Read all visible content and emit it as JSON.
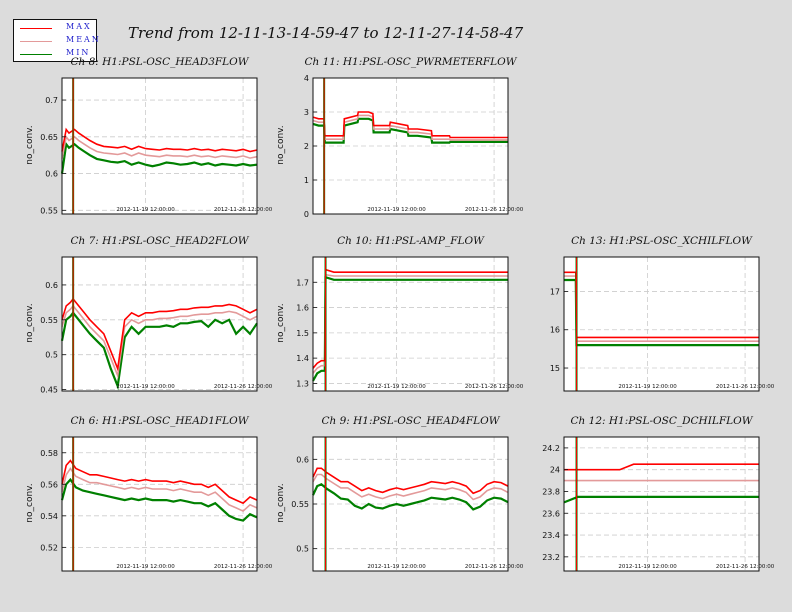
{
  "title": "Trend from 12-11-13-14-59-47 to 12-11-27-14-58-47",
  "legend": [
    {
      "label": "MAX",
      "color": "#ff0000"
    },
    {
      "label": "MEAN",
      "color": "#e39a9a"
    },
    {
      "label": "MIN",
      "color": "#008000"
    }
  ],
  "colors": {
    "max": "#ff0000",
    "mean": "#e39a9a",
    "min": "#008000",
    "grid": "#cccccc"
  },
  "chart_data": [
    {
      "id": "ch8",
      "type": "line",
      "title": "Ch 8: H1:PSL-OSC_HEAD3FLOW",
      "ylabel": "no_conv.",
      "ylim": [
        0.545,
        0.73
      ],
      "yticks": [
        "0.55",
        "0.6",
        "0.65",
        "0.7"
      ],
      "ytick_values": [
        0.55,
        0.6,
        0.65,
        0.7
      ],
      "xticks": [
        "2012-11-19 12:00:00",
        "2012-11-26 12:00:00"
      ],
      "xtick_days": [
        6.0,
        13.0
      ],
      "spike_day": 0.8,
      "series": {
        "x": [
          0,
          0.3,
          0.5,
          0.9,
          1.2,
          1.6,
          2,
          2.5,
          3,
          3.5,
          4,
          4.5,
          5,
          5.5,
          6,
          6.5,
          7,
          7.5,
          8,
          8.5,
          9,
          9.5,
          10,
          10.5,
          11,
          11.5,
          12,
          12.5,
          13,
          13.5,
          14
        ],
        "max": [
          0.63,
          0.66,
          0.655,
          0.66,
          0.655,
          0.65,
          0.645,
          0.64,
          0.637,
          0.636,
          0.635,
          0.637,
          0.633,
          0.637,
          0.634,
          0.633,
          0.632,
          0.634,
          0.633,
          0.633,
          0.632,
          0.634,
          0.632,
          0.633,
          0.631,
          0.633,
          0.632,
          0.631,
          0.633,
          0.63,
          0.632
        ],
        "mean": [
          0.62,
          0.65,
          0.645,
          0.65,
          0.645,
          0.64,
          0.635,
          0.63,
          0.628,
          0.627,
          0.626,
          0.628,
          0.624,
          0.628,
          0.625,
          0.624,
          0.623,
          0.625,
          0.624,
          0.624,
          0.623,
          0.625,
          0.623,
          0.624,
          0.622,
          0.624,
          0.623,
          0.622,
          0.624,
          0.621,
          0.623
        ],
        "min": [
          0.6,
          0.64,
          0.635,
          0.64,
          0.635,
          0.63,
          0.625,
          0.62,
          0.618,
          0.616,
          0.615,
          0.617,
          0.612,
          0.615,
          0.612,
          0.61,
          0.612,
          0.615,
          0.614,
          0.612,
          0.613,
          0.615,
          0.612,
          0.614,
          0.611,
          0.613,
          0.612,
          0.611,
          0.613,
          0.611,
          0.612
        ]
      }
    },
    {
      "id": "ch11",
      "type": "line",
      "title": "Ch 11: H1:PSL-OSC_PWRMETERFLOW",
      "ylabel": "no_conv.",
      "ylim": [
        0,
        4
      ],
      "yticks": [
        "0",
        "1",
        "2",
        "3",
        "4"
      ],
      "ytick_values": [
        0,
        1,
        2,
        3,
        4
      ],
      "xticks": [
        "2012-11-19 12:00:00",
        "2012-11-26 12:00:00"
      ],
      "xtick_days": [
        6.0,
        13.0
      ],
      "spike_day": 0.8,
      "series": {
        "x": [
          0,
          0.4,
          0.8,
          0.85,
          2.2,
          2.25,
          3.2,
          3.25,
          4.0,
          4.3,
          4.35,
          5.5,
          5.55,
          6.8,
          6.85,
          7.5,
          8.5,
          8.55,
          9.8,
          9.85,
          11.0,
          11.05,
          14
        ],
        "max": [
          2.85,
          2.8,
          2.8,
          2.3,
          2.3,
          2.8,
          2.9,
          3.0,
          3.0,
          2.95,
          2.6,
          2.6,
          2.7,
          2.6,
          2.5,
          2.5,
          2.45,
          2.3,
          2.3,
          2.25,
          2.25,
          2.25,
          2.25
        ],
        "mean": [
          2.75,
          2.7,
          2.7,
          2.2,
          2.2,
          2.7,
          2.8,
          2.9,
          2.9,
          2.85,
          2.5,
          2.5,
          2.6,
          2.5,
          2.4,
          2.4,
          2.35,
          2.2,
          2.2,
          2.18,
          2.18,
          2.18,
          2.18
        ],
        "min": [
          2.65,
          2.6,
          2.6,
          2.1,
          2.1,
          2.6,
          2.7,
          2.8,
          2.8,
          2.75,
          2.4,
          2.4,
          2.5,
          2.4,
          2.3,
          2.3,
          2.25,
          2.1,
          2.1,
          2.12,
          2.12,
          2.12,
          2.12
        ]
      }
    },
    {
      "id": "ch7",
      "type": "line",
      "title": "Ch 7: H1:PSL-OSC_HEAD2FLOW",
      "ylabel": "no_conv.",
      "ylim": [
        0.448,
        0.64
      ],
      "yticks": [
        "0.45",
        "0.5",
        "0.55",
        "0.6"
      ],
      "ytick_values": [
        0.45,
        0.5,
        0.55,
        0.6
      ],
      "xticks": [
        "2012-11-19 12:00:00",
        "2012-11-26 12:00:00"
      ],
      "xtick_days": [
        6.0,
        13.0
      ],
      "spike_day": 0.8,
      "series": {
        "x": [
          0,
          0.3,
          0.6,
          0.8,
          1.2,
          1.6,
          2,
          2.5,
          3,
          3.5,
          4,
          4.5,
          5,
          5.5,
          6,
          6.5,
          7,
          7.5,
          8,
          8.5,
          9,
          9.5,
          10,
          10.5,
          11,
          11.5,
          12,
          12.5,
          13,
          13.5,
          14
        ],
        "max": [
          0.55,
          0.57,
          0.575,
          0.58,
          0.57,
          0.56,
          0.55,
          0.54,
          0.53,
          0.505,
          0.48,
          0.55,
          0.56,
          0.555,
          0.56,
          0.56,
          0.562,
          0.562,
          0.563,
          0.565,
          0.565,
          0.567,
          0.568,
          0.568,
          0.57,
          0.57,
          0.572,
          0.57,
          0.565,
          0.56,
          0.565
        ],
        "mean": [
          0.54,
          0.56,
          0.565,
          0.57,
          0.56,
          0.55,
          0.54,
          0.53,
          0.52,
          0.495,
          0.47,
          0.54,
          0.55,
          0.545,
          0.55,
          0.55,
          0.552,
          0.552,
          0.553,
          0.555,
          0.555,
          0.557,
          0.558,
          0.558,
          0.56,
          0.56,
          0.562,
          0.56,
          0.555,
          0.55,
          0.555
        ],
        "min": [
          0.52,
          0.55,
          0.555,
          0.56,
          0.55,
          0.54,
          0.53,
          0.52,
          0.51,
          0.48,
          0.455,
          0.525,
          0.54,
          0.53,
          0.54,
          0.54,
          0.54,
          0.542,
          0.54,
          0.545,
          0.545,
          0.547,
          0.548,
          0.54,
          0.55,
          0.545,
          0.55,
          0.53,
          0.54,
          0.53,
          0.545
        ]
      }
    },
    {
      "id": "ch10",
      "type": "line",
      "title": "Ch 10: H1:PSL-AMP_FLOW",
      "ylabel": "no_conv.",
      "ylim": [
        1.27,
        1.8
      ],
      "yticks": [
        "1.3",
        "1.4",
        "1.5",
        "1.6",
        "1.7"
      ],
      "ytick_values": [
        1.3,
        1.4,
        1.5,
        1.6,
        1.7
      ],
      "xticks": [
        "2012-11-19 12:00:00",
        "2012-11-26 12:00:00"
      ],
      "xtick_days": [
        6.0,
        13.0
      ],
      "spike_day": 0.9,
      "series": {
        "x": [
          0,
          0.3,
          0.6,
          0.85,
          0.9,
          1.5,
          3,
          5,
          7,
          9,
          11,
          13,
          14
        ],
        "max": [
          1.36,
          1.38,
          1.39,
          1.39,
          1.75,
          1.74,
          1.74,
          1.74,
          1.74,
          1.74,
          1.74,
          1.74,
          1.74
        ],
        "mean": [
          1.34,
          1.36,
          1.37,
          1.37,
          1.73,
          1.725,
          1.725,
          1.725,
          1.725,
          1.725,
          1.725,
          1.725,
          1.725
        ],
        "min": [
          1.31,
          1.34,
          1.35,
          1.35,
          1.72,
          1.71,
          1.71,
          1.71,
          1.71,
          1.71,
          1.71,
          1.71,
          1.71
        ]
      }
    },
    {
      "id": "ch13",
      "type": "line",
      "title": "Ch 13: H1:PSL-OSC_XCHILFLOW",
      "ylabel": "",
      "ylim": [
        14.4,
        17.9
      ],
      "yticks": [
        "15",
        "16",
        "17"
      ],
      "ytick_values": [
        15,
        16,
        17
      ],
      "xticks": [
        "2012-11-19 12:00:00",
        "2012-11-26 12:00:00"
      ],
      "xtick_days": [
        6.0,
        13.0
      ],
      "spike_day": 0.9,
      "series": {
        "x": [
          0,
          0.85,
          0.9,
          2,
          4,
          6,
          8,
          10,
          12,
          14
        ],
        "max": [
          17.5,
          17.5,
          15.8,
          15.8,
          15.8,
          15.8,
          15.8,
          15.8,
          15.8,
          15.8
        ],
        "mean": [
          17.4,
          17.4,
          15.7,
          15.7,
          15.7,
          15.7,
          15.7,
          15.7,
          15.7,
          15.7
        ],
        "min": [
          17.3,
          17.3,
          15.6,
          15.6,
          15.6,
          15.6,
          15.6,
          15.6,
          15.6,
          15.6
        ]
      }
    },
    {
      "id": "ch6",
      "type": "line",
      "title": "Ch 6: H1:PSL-OSC_HEAD1FLOW",
      "ylabel": "no_conv.",
      "ylim": [
        0.505,
        0.59
      ],
      "yticks": [
        "0.52",
        "0.54",
        "0.56",
        "0.58"
      ],
      "ytick_values": [
        0.52,
        0.54,
        0.56,
        0.58
      ],
      "xticks": [
        "2012-11-19 12:00:00",
        "2012-11-26 12:00:00"
      ],
      "xtick_days": [
        6.0,
        13.0
      ],
      "spike_day": 0.8,
      "series": {
        "x": [
          0,
          0.3,
          0.6,
          1,
          1.5,
          2,
          2.5,
          3,
          3.5,
          4,
          4.5,
          5,
          5.5,
          6,
          6.5,
          7,
          7.5,
          8,
          8.5,
          9,
          9.5,
          10,
          10.5,
          11,
          11.5,
          12,
          12.5,
          13,
          13.5,
          14
        ],
        "max": [
          0.56,
          0.572,
          0.575,
          0.57,
          0.568,
          0.566,
          0.566,
          0.565,
          0.564,
          0.563,
          0.562,
          0.563,
          0.562,
          0.563,
          0.562,
          0.562,
          0.562,
          0.561,
          0.562,
          0.561,
          0.56,
          0.56,
          0.558,
          0.56,
          0.556,
          0.552,
          0.55,
          0.548,
          0.552,
          0.55
        ],
        "mean": [
          0.555,
          0.566,
          0.57,
          0.565,
          0.563,
          0.561,
          0.561,
          0.56,
          0.559,
          0.558,
          0.557,
          0.558,
          0.557,
          0.558,
          0.557,
          0.557,
          0.557,
          0.556,
          0.557,
          0.556,
          0.555,
          0.555,
          0.553,
          0.555,
          0.551,
          0.547,
          0.545,
          0.543,
          0.547,
          0.545
        ],
        "min": [
          0.55,
          0.56,
          0.563,
          0.558,
          0.556,
          0.555,
          0.554,
          0.553,
          0.552,
          0.551,
          0.55,
          0.551,
          0.55,
          0.551,
          0.55,
          0.55,
          0.55,
          0.549,
          0.55,
          0.549,
          0.548,
          0.548,
          0.546,
          0.548,
          0.544,
          0.54,
          0.538,
          0.537,
          0.541,
          0.539
        ]
      }
    },
    {
      "id": "ch9",
      "type": "line",
      "title": "Ch 9: H1:PSL-OSC_HEAD4FLOW",
      "ylabel": "no_conv.",
      "ylim": [
        0.475,
        0.625
      ],
      "yticks": [
        "0.5",
        "0.55",
        "0.6"
      ],
      "ytick_values": [
        0.5,
        0.55,
        0.6
      ],
      "xticks": [
        "2012-11-19 12:00:00",
        "2012-11-26 12:00:00"
      ],
      "xtick_days": [
        6.0,
        13.0
      ],
      "spike_day": 0.9,
      "series": {
        "x": [
          0,
          0.3,
          0.6,
          1,
          1.5,
          2,
          2.5,
          3,
          3.5,
          4,
          4.5,
          5,
          5.5,
          6,
          6.5,
          7,
          7.5,
          8,
          8.5,
          9,
          9.5,
          10,
          10.5,
          11,
          11.5,
          12,
          12.5,
          13,
          13.5,
          14
        ],
        "max": [
          0.58,
          0.59,
          0.59,
          0.585,
          0.58,
          0.575,
          0.575,
          0.57,
          0.565,
          0.568,
          0.565,
          0.563,
          0.566,
          0.568,
          0.566,
          0.568,
          0.57,
          0.572,
          0.575,
          0.574,
          0.573,
          0.575,
          0.573,
          0.57,
          0.562,
          0.565,
          0.572,
          0.575,
          0.574,
          0.57
        ],
        "mean": [
          0.575,
          0.583,
          0.583,
          0.578,
          0.573,
          0.568,
          0.568,
          0.563,
          0.558,
          0.561,
          0.558,
          0.556,
          0.559,
          0.561,
          0.559,
          0.561,
          0.563,
          0.565,
          0.568,
          0.567,
          0.566,
          0.568,
          0.566,
          0.563,
          0.555,
          0.558,
          0.565,
          0.568,
          0.567,
          0.563
        ],
        "min": [
          0.56,
          0.57,
          0.572,
          0.567,
          0.562,
          0.556,
          0.555,
          0.548,
          0.545,
          0.55,
          0.546,
          0.545,
          0.548,
          0.55,
          0.548,
          0.55,
          0.552,
          0.554,
          0.557,
          0.556,
          0.555,
          0.557,
          0.555,
          0.552,
          0.544,
          0.547,
          0.554,
          0.557,
          0.556,
          0.552
        ]
      }
    },
    {
      "id": "ch12",
      "type": "line",
      "title": "Ch 12: H1:PSL-OSC_DCHILFLOW",
      "ylabel": "",
      "ylim": [
        23.07,
        24.3
      ],
      "yticks": [
        "23.2",
        "23.4",
        "23.6",
        "23.8",
        "24",
        "24.2"
      ],
      "ytick_values": [
        23.2,
        23.4,
        23.6,
        23.8,
        24,
        24.2
      ],
      "xticks": [
        "2012-11-19 12:00:00",
        "2012-11-26 12:00:00"
      ],
      "xtick_days": [
        6.0,
        13.0
      ],
      "spike_day": 0.9,
      "series": {
        "x": [
          0,
          1,
          2,
          3,
          4,
          5,
          6,
          7,
          8,
          9,
          10,
          11,
          12,
          13,
          14
        ],
        "max": [
          24.0,
          24.0,
          24.0,
          24.0,
          24.0,
          24.05,
          24.05,
          24.05,
          24.05,
          24.05,
          24.05,
          24.05,
          24.05,
          24.05,
          24.05
        ],
        "mean": [
          23.9,
          23.9,
          23.9,
          23.9,
          23.9,
          23.9,
          23.9,
          23.9,
          23.9,
          23.9,
          23.9,
          23.9,
          23.9,
          23.9,
          23.9
        ],
        "min": [
          23.7,
          23.75,
          23.75,
          23.75,
          23.75,
          23.75,
          23.75,
          23.75,
          23.75,
          23.75,
          23.75,
          23.75,
          23.75,
          23.75,
          23.75
        ]
      }
    }
  ]
}
